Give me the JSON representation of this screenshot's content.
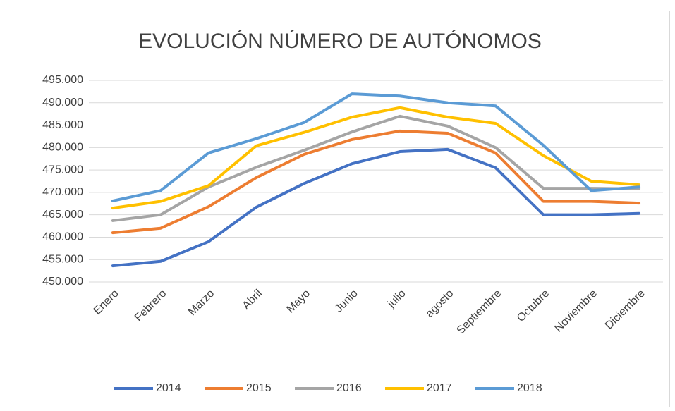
{
  "chart_data": {
    "type": "line",
    "title": "EVOLUCIÓN NÚMERO DE AUTÓNOMOS",
    "categories": [
      "Enero",
      "Febrero",
      "Marzo",
      "Abril",
      "Mayo",
      "Junio",
      "julio",
      "agosto",
      "Septiembre",
      "Octubre",
      "Noviembre",
      "Diciembre"
    ],
    "series": [
      {
        "name": "2014",
        "color": "#4472c4",
        "values": [
          453600,
          454600,
          459000,
          466700,
          472000,
          476400,
          479100,
          479600,
          475500,
          465000,
          465000,
          465300
        ]
      },
      {
        "name": "2015",
        "color": "#ed7d31",
        "values": [
          461000,
          462000,
          466800,
          473300,
          478500,
          481800,
          483700,
          483200,
          478800,
          468000,
          468000,
          467600
        ]
      },
      {
        "name": "2016",
        "color": "#a5a5a5",
        "values": [
          463700,
          465000,
          471200,
          475600,
          479400,
          483500,
          487000,
          484800,
          480000,
          470900,
          470900,
          470800
        ]
      },
      {
        "name": "2017",
        "color": "#ffc000",
        "values": [
          466500,
          468000,
          471500,
          480400,
          483400,
          486800,
          488900,
          486800,
          485400,
          478200,
          472500,
          471700
        ]
      },
      {
        "name": "2018",
        "color": "#5b9bd5",
        "values": [
          468100,
          470400,
          478800,
          482000,
          485600,
          492000,
          491500,
          490000,
          489300,
          480500,
          470400,
          471200
        ]
      }
    ],
    "ylim": [
      450000,
      495000
    ],
    "yticks": [
      {
        "value": 450000,
        "label": "450.000"
      },
      {
        "value": 455000,
        "label": "455.000"
      },
      {
        "value": 460000,
        "label": "460.000"
      },
      {
        "value": 465000,
        "label": "465.000"
      },
      {
        "value": 470000,
        "label": "470.000"
      },
      {
        "value": 475000,
        "label": "475.000"
      },
      {
        "value": 480000,
        "label": "480.000"
      },
      {
        "value": 485000,
        "label": "485.000"
      },
      {
        "value": 490000,
        "label": "490.000"
      },
      {
        "value": 495000,
        "label": "495.000"
      }
    ],
    "grid": true,
    "legend_position": "bottom"
  }
}
